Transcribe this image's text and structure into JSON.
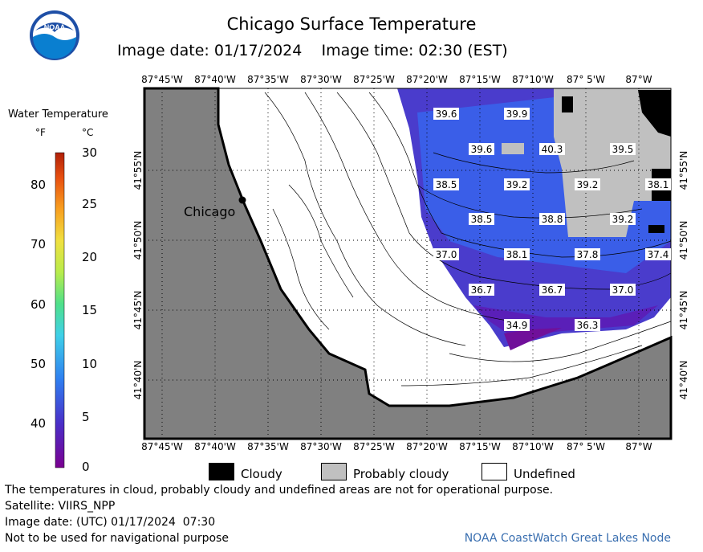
{
  "header": {
    "title": "Chicago Surface Temperature",
    "image_date": "Image date: 01/17/2024",
    "image_time": "Image time: 02:30 (EST)",
    "logo_text": "NOAA"
  },
  "colorbar": {
    "title": "Water Temperature",
    "unit_f": "°F",
    "unit_c": "°C",
    "ticks_f": [
      "80",
      "70",
      "60",
      "50",
      "40"
    ],
    "ticks_c": [
      "30",
      "25",
      "20",
      "15",
      "10",
      "5",
      "0"
    ]
  },
  "axes": {
    "lon_labels": [
      "87°45'W",
      "87°40'W",
      "87°35'W",
      "87°30'W",
      "87°25'W",
      "87°20'W",
      "87°15'W",
      "87°10'W",
      "87° 5'W",
      "87°W"
    ],
    "lat_labels": [
      "41°55'N",
      "41°50'N",
      "41°45'N",
      "41°40'N"
    ]
  },
  "map": {
    "city_label": "Chicago",
    "land_color": "#808080",
    "undefined_color": "#ffffff",
    "cloudy_color": "#000000",
    "probably_cloudy_color": "#c0c0c0",
    "temperature_labels": [
      "39.6",
      "39.9",
      "39.6",
      "40.3",
      "39.5",
      "38.5",
      "39.2",
      "39.2",
      "38.1",
      "38.5",
      "38.8",
      "39.2",
      "37.0",
      "38.1",
      "37.8",
      "37.4",
      "36.7",
      "36.7",
      "37.0",
      "34.9",
      "36.3"
    ]
  },
  "legend": {
    "cloudy": "Cloudy",
    "probably_cloudy": "Probably cloudy",
    "undefined": "Undefined"
  },
  "footer": {
    "disclaimer": "The temperatures in cloud, probably cloudy and undefined areas are not for operational purpose.",
    "satellite": "Satellite: VIIRS_NPP",
    "utc_date": "Image date: (UTC) 01/17/2024  07:30",
    "nav_warning": "Not to be used for navigational purpose",
    "credit": "NOAA CoastWatch Great Lakes Node"
  }
}
